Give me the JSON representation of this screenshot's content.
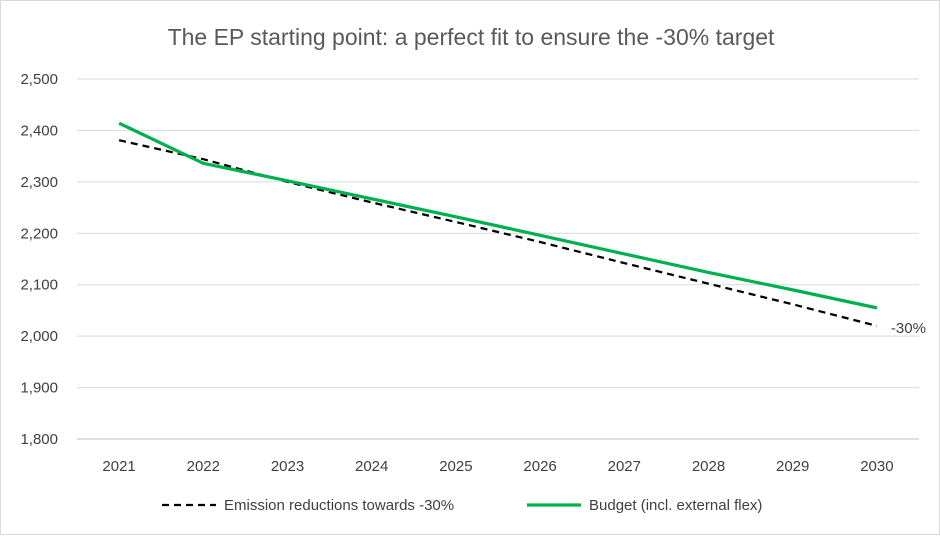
{
  "chart_data": {
    "type": "line",
    "title": "The EP starting point: a perfect fit to ensure the -30% target",
    "xlabel": "",
    "ylabel": "",
    "x": [
      "2021",
      "2022",
      "2023",
      "2024",
      "2025",
      "2026",
      "2027",
      "2028",
      "2029",
      "2030"
    ],
    "ylim": [
      1800,
      2500
    ],
    "yticks": [
      "1,800",
      "1,900",
      "2,000",
      "2,100",
      "2,200",
      "2,300",
      "2,400",
      "2,500"
    ],
    "ytick_values": [
      1800,
      1900,
      2000,
      2100,
      2200,
      2300,
      2400,
      2500
    ],
    "grid": "horizontal",
    "legend_position": "bottom",
    "series": [
      {
        "name": "Emission reductions towards -30%",
        "values": [
          2381,
          2344,
          2300,
          2260,
          2222,
          2183,
          2142,
          2102,
          2062,
          2020
        ],
        "color": "#000000",
        "style": "dashed"
      },
      {
        "name": "Budget (incl. external flex)",
        "values": [
          2414,
          2336,
          2302,
          2267,
          2232,
          2196,
          2160,
          2124,
          2090,
          2055
        ],
        "color": "#00b050",
        "style": "solid"
      }
    ],
    "annotations": [
      {
        "text": "-30%",
        "series": 0,
        "x": "2030"
      }
    ]
  }
}
